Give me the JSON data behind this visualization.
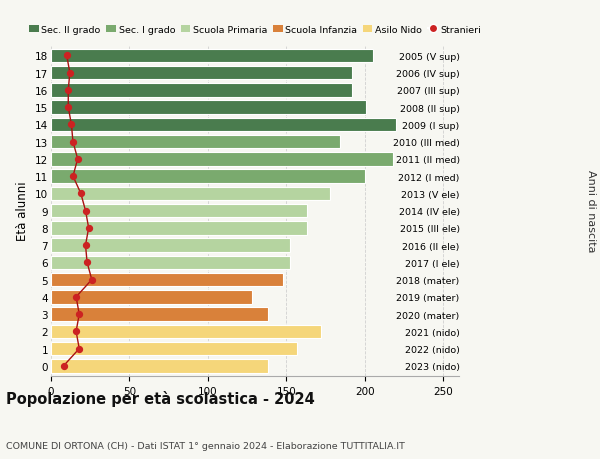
{
  "ages": [
    18,
    17,
    16,
    15,
    14,
    13,
    12,
    11,
    10,
    9,
    8,
    7,
    6,
    5,
    4,
    3,
    2,
    1,
    0
  ],
  "values": [
    205,
    192,
    192,
    201,
    220,
    184,
    218,
    200,
    178,
    163,
    163,
    152,
    152,
    148,
    128,
    138,
    172,
    157,
    138
  ],
  "stranieri": [
    10,
    12,
    11,
    11,
    13,
    14,
    17,
    14,
    19,
    22,
    24,
    22,
    23,
    26,
    16,
    18,
    16,
    18,
    8
  ],
  "right_labels": [
    "2005 (V sup)",
    "2006 (IV sup)",
    "2007 (III sup)",
    "2008 (II sup)",
    "2009 (I sup)",
    "2010 (III med)",
    "2011 (II med)",
    "2012 (I med)",
    "2013 (V ele)",
    "2014 (IV ele)",
    "2015 (III ele)",
    "2016 (II ele)",
    "2017 (I ele)",
    "2018 (mater)",
    "2019 (mater)",
    "2020 (mater)",
    "2021 (nido)",
    "2022 (nido)",
    "2023 (nido)"
  ],
  "bar_colors": [
    "#4a7c4e",
    "#4a7c4e",
    "#4a7c4e",
    "#4a7c4e",
    "#4a7c4e",
    "#7aaa6e",
    "#7aaa6e",
    "#7aaa6e",
    "#b5d4a0",
    "#b5d4a0",
    "#b5d4a0",
    "#b5d4a0",
    "#b5d4a0",
    "#d9813a",
    "#d9813a",
    "#d9813a",
    "#f5d67a",
    "#f5d67a",
    "#f5d67a"
  ],
  "legend_labels": [
    "Sec. II grado",
    "Sec. I grado",
    "Scuola Primaria",
    "Scuola Infanzia",
    "Asilo Nido",
    "Stranieri"
  ],
  "legend_colors": [
    "#4a7c4e",
    "#7aaa6e",
    "#b5d4a0",
    "#d9813a",
    "#f5d67a",
    "#cc2222"
  ],
  "title": "Popolazione per età scolastica - 2024",
  "subtitle": "COMUNE DI ORTONA (CH) - Dati ISTAT 1° gennaio 2024 - Elaborazione TUTTITALIA.IT",
  "ylabel_left": "Età alunni",
  "ylabel_right": "Anni di nascita",
  "xlim": [
    0,
    260
  ],
  "xticks": [
    0,
    50,
    100,
    150,
    200,
    250
  ],
  "background_color": "#f7f7f2",
  "stranieri_color": "#cc2222",
  "stranieri_line_color": "#aa1111",
  "bar_height": 0.78,
  "ylim_bottom": -0.6,
  "ylim_top": 18.6
}
